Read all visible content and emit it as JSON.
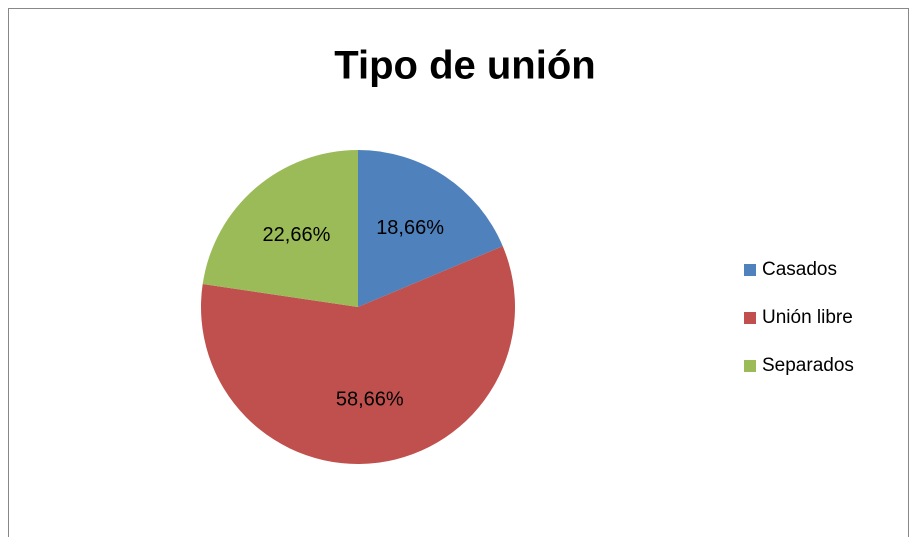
{
  "chart_data": {
    "type": "pie",
    "title": "Tipo de unión",
    "categories": [
      "Casados",
      "Unión libre",
      "Separados"
    ],
    "values": [
      18.66,
      58.66,
      22.66
    ],
    "value_labels": [
      "18,66%",
      "58,66%",
      "22,66%"
    ],
    "colors": [
      "#4f81bd",
      "#c0504d",
      "#9bbb59"
    ],
    "legend": "right"
  }
}
